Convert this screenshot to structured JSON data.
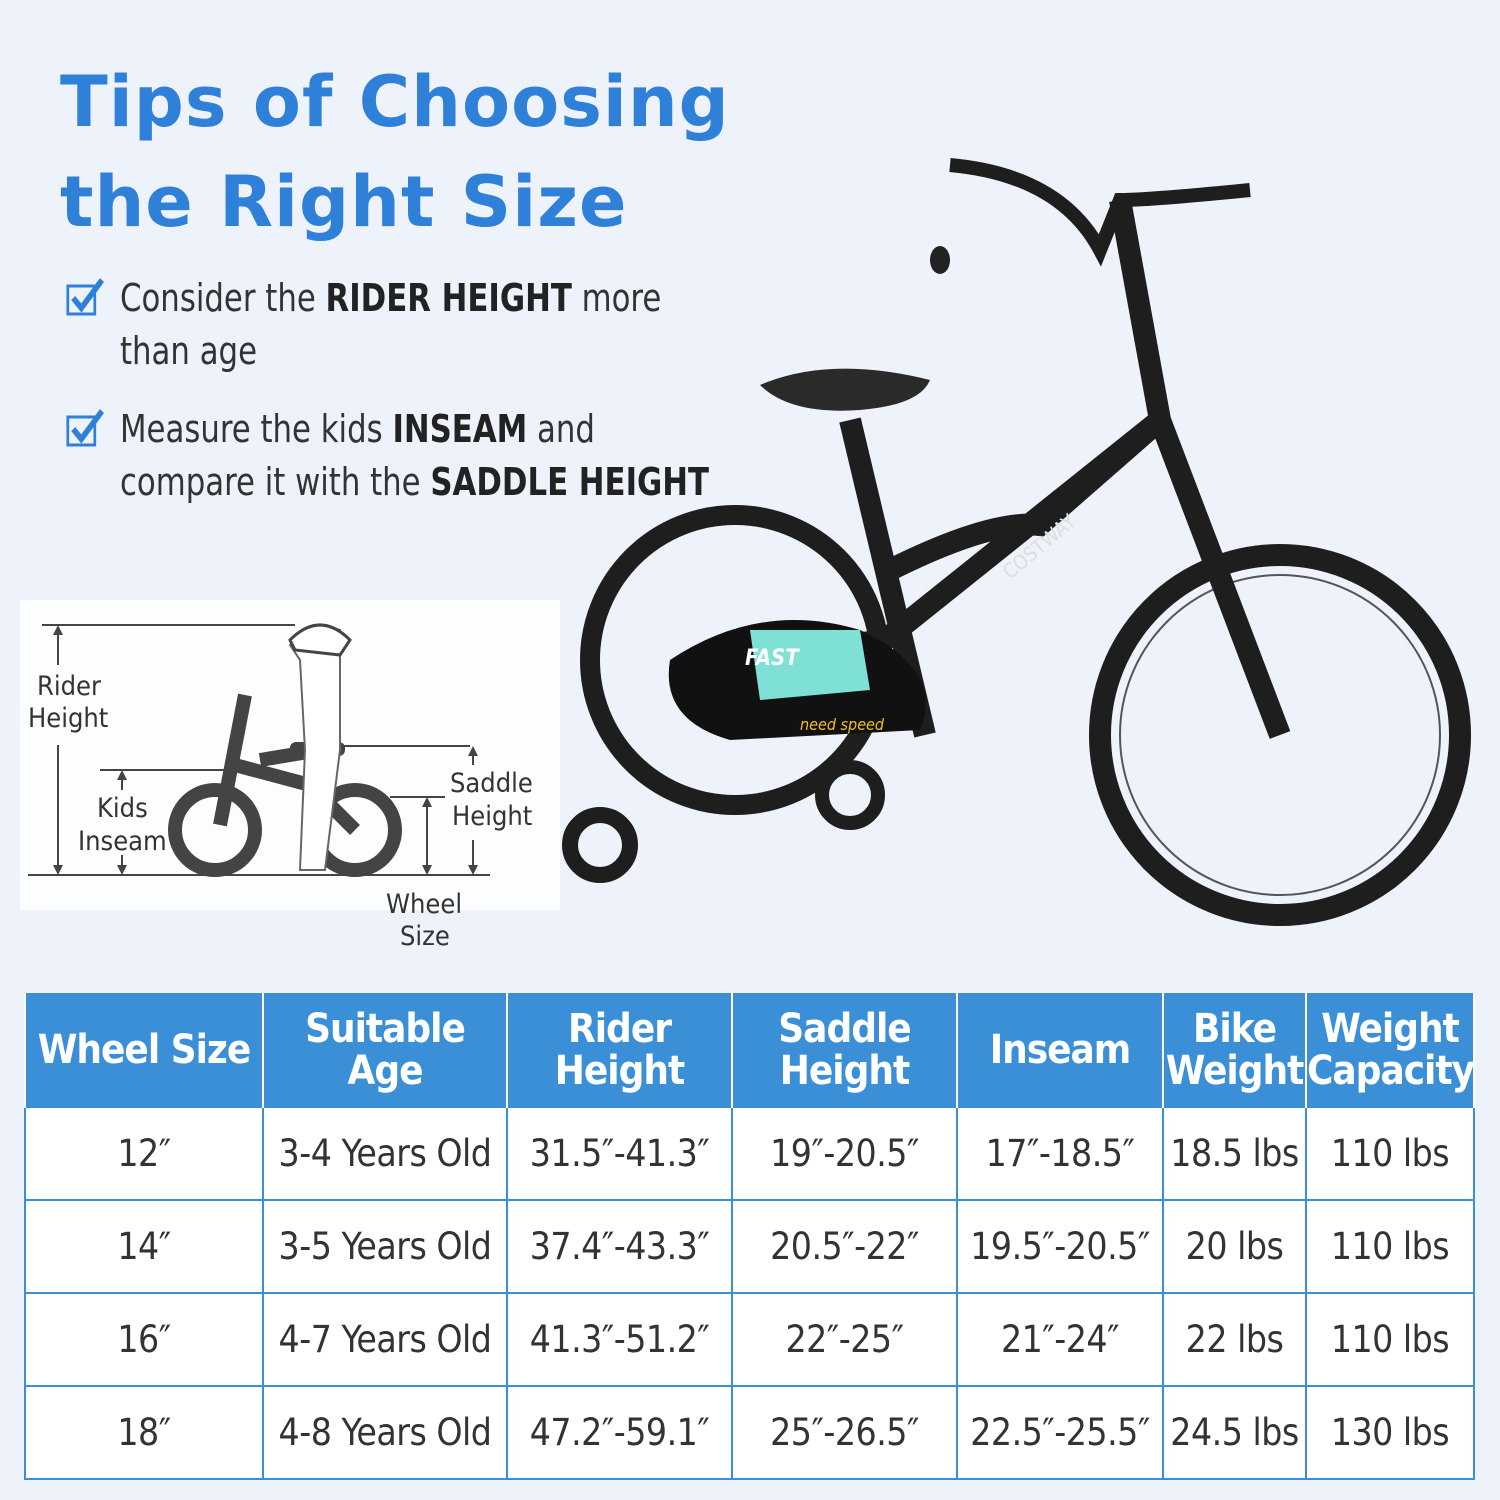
{
  "title": {
    "line1": "Tips of Choosing",
    "line2": "the Right Size"
  },
  "tips": [
    {
      "pre": "Consider the ",
      "bold": "RIDER HEIGHT",
      "post": " more",
      "line2": "than age"
    },
    {
      "pre": "Measure the kids ",
      "bold": "INSEAM",
      "post": " and",
      "line2pre": "compare it with the ",
      "line2bold": "SADDLE HEIGHT"
    }
  ],
  "diagram": {
    "rider_height": [
      "Rider",
      "Height"
    ],
    "kids_inseam": [
      "Kids",
      "Inseam"
    ],
    "saddle_height": [
      "Saddle",
      "Height"
    ],
    "wheel_size": [
      "Wheel",
      "Size"
    ]
  },
  "bike": {
    "brand": "COSTWAY",
    "decal": "FAST",
    "sticker": "need speed"
  },
  "colors": {
    "accent": "#2e80d8",
    "table_header": "#3a8fd6",
    "background": "#eef2fb"
  },
  "table": {
    "headers": [
      "Wheel Size",
      "Suitable Age",
      "Rider Height",
      "Saddle Height",
      "Inseam",
      "Bike Weight",
      "Weight Capacity"
    ],
    "rows": [
      [
        "12″",
        "3-4 Years Old",
        "31.5″-41.3″",
        "19″-20.5″",
        "17″-18.5″",
        "18.5 lbs",
        "110 lbs"
      ],
      [
        "14″",
        "3-5 Years Old",
        "37.4″-43.3″",
        "20.5″-22″",
        "19.5″-20.5″",
        "20 lbs",
        "110 lbs"
      ],
      [
        "16″",
        "4-7 Years Old",
        "41.3″-51.2″",
        "22″-25″",
        "21″-24″",
        "22 lbs",
        "110 lbs"
      ],
      [
        "18″",
        "4-8 Years Old",
        "47.2″-59.1″",
        "25″-26.5″",
        "22.5″-25.5″",
        "24.5 lbs",
        "130 lbs"
      ]
    ]
  }
}
